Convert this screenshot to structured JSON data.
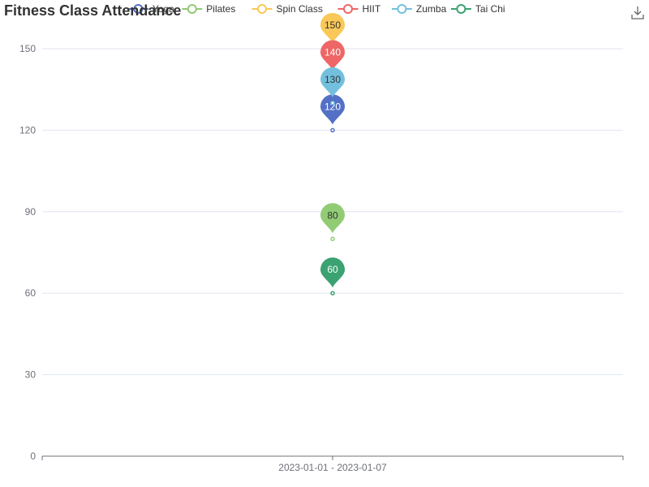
{
  "toolbar": {
    "download_icon": "download-icon"
  },
  "chart_data": {
    "type": "line",
    "title": "Fitness Class Attendance",
    "xlabel": "",
    "ylabel": "",
    "categories": [
      "2023-01-01 - 2023-01-07"
    ],
    "ylim": [
      0,
      150
    ],
    "yticks": [
      0,
      30,
      60,
      90,
      120,
      150
    ],
    "grid": true,
    "legend_position": "top",
    "series": [
      {
        "name": "Yoga",
        "values": [
          120
        ],
        "color": "#5470c6"
      },
      {
        "name": "Pilates",
        "values": [
          80
        ],
        "color": "#91cc75"
      },
      {
        "name": "Spin Class",
        "values": [
          150
        ],
        "color": "#fac858"
      },
      {
        "name": "HIIT",
        "values": [
          140
        ],
        "color": "#ee6666"
      },
      {
        "name": "Zumba",
        "values": [
          130
        ],
        "color": "#73c0de"
      },
      {
        "name": "Tai Chi",
        "values": [
          60
        ],
        "color": "#3ba272"
      }
    ],
    "markpoint": "max"
  }
}
